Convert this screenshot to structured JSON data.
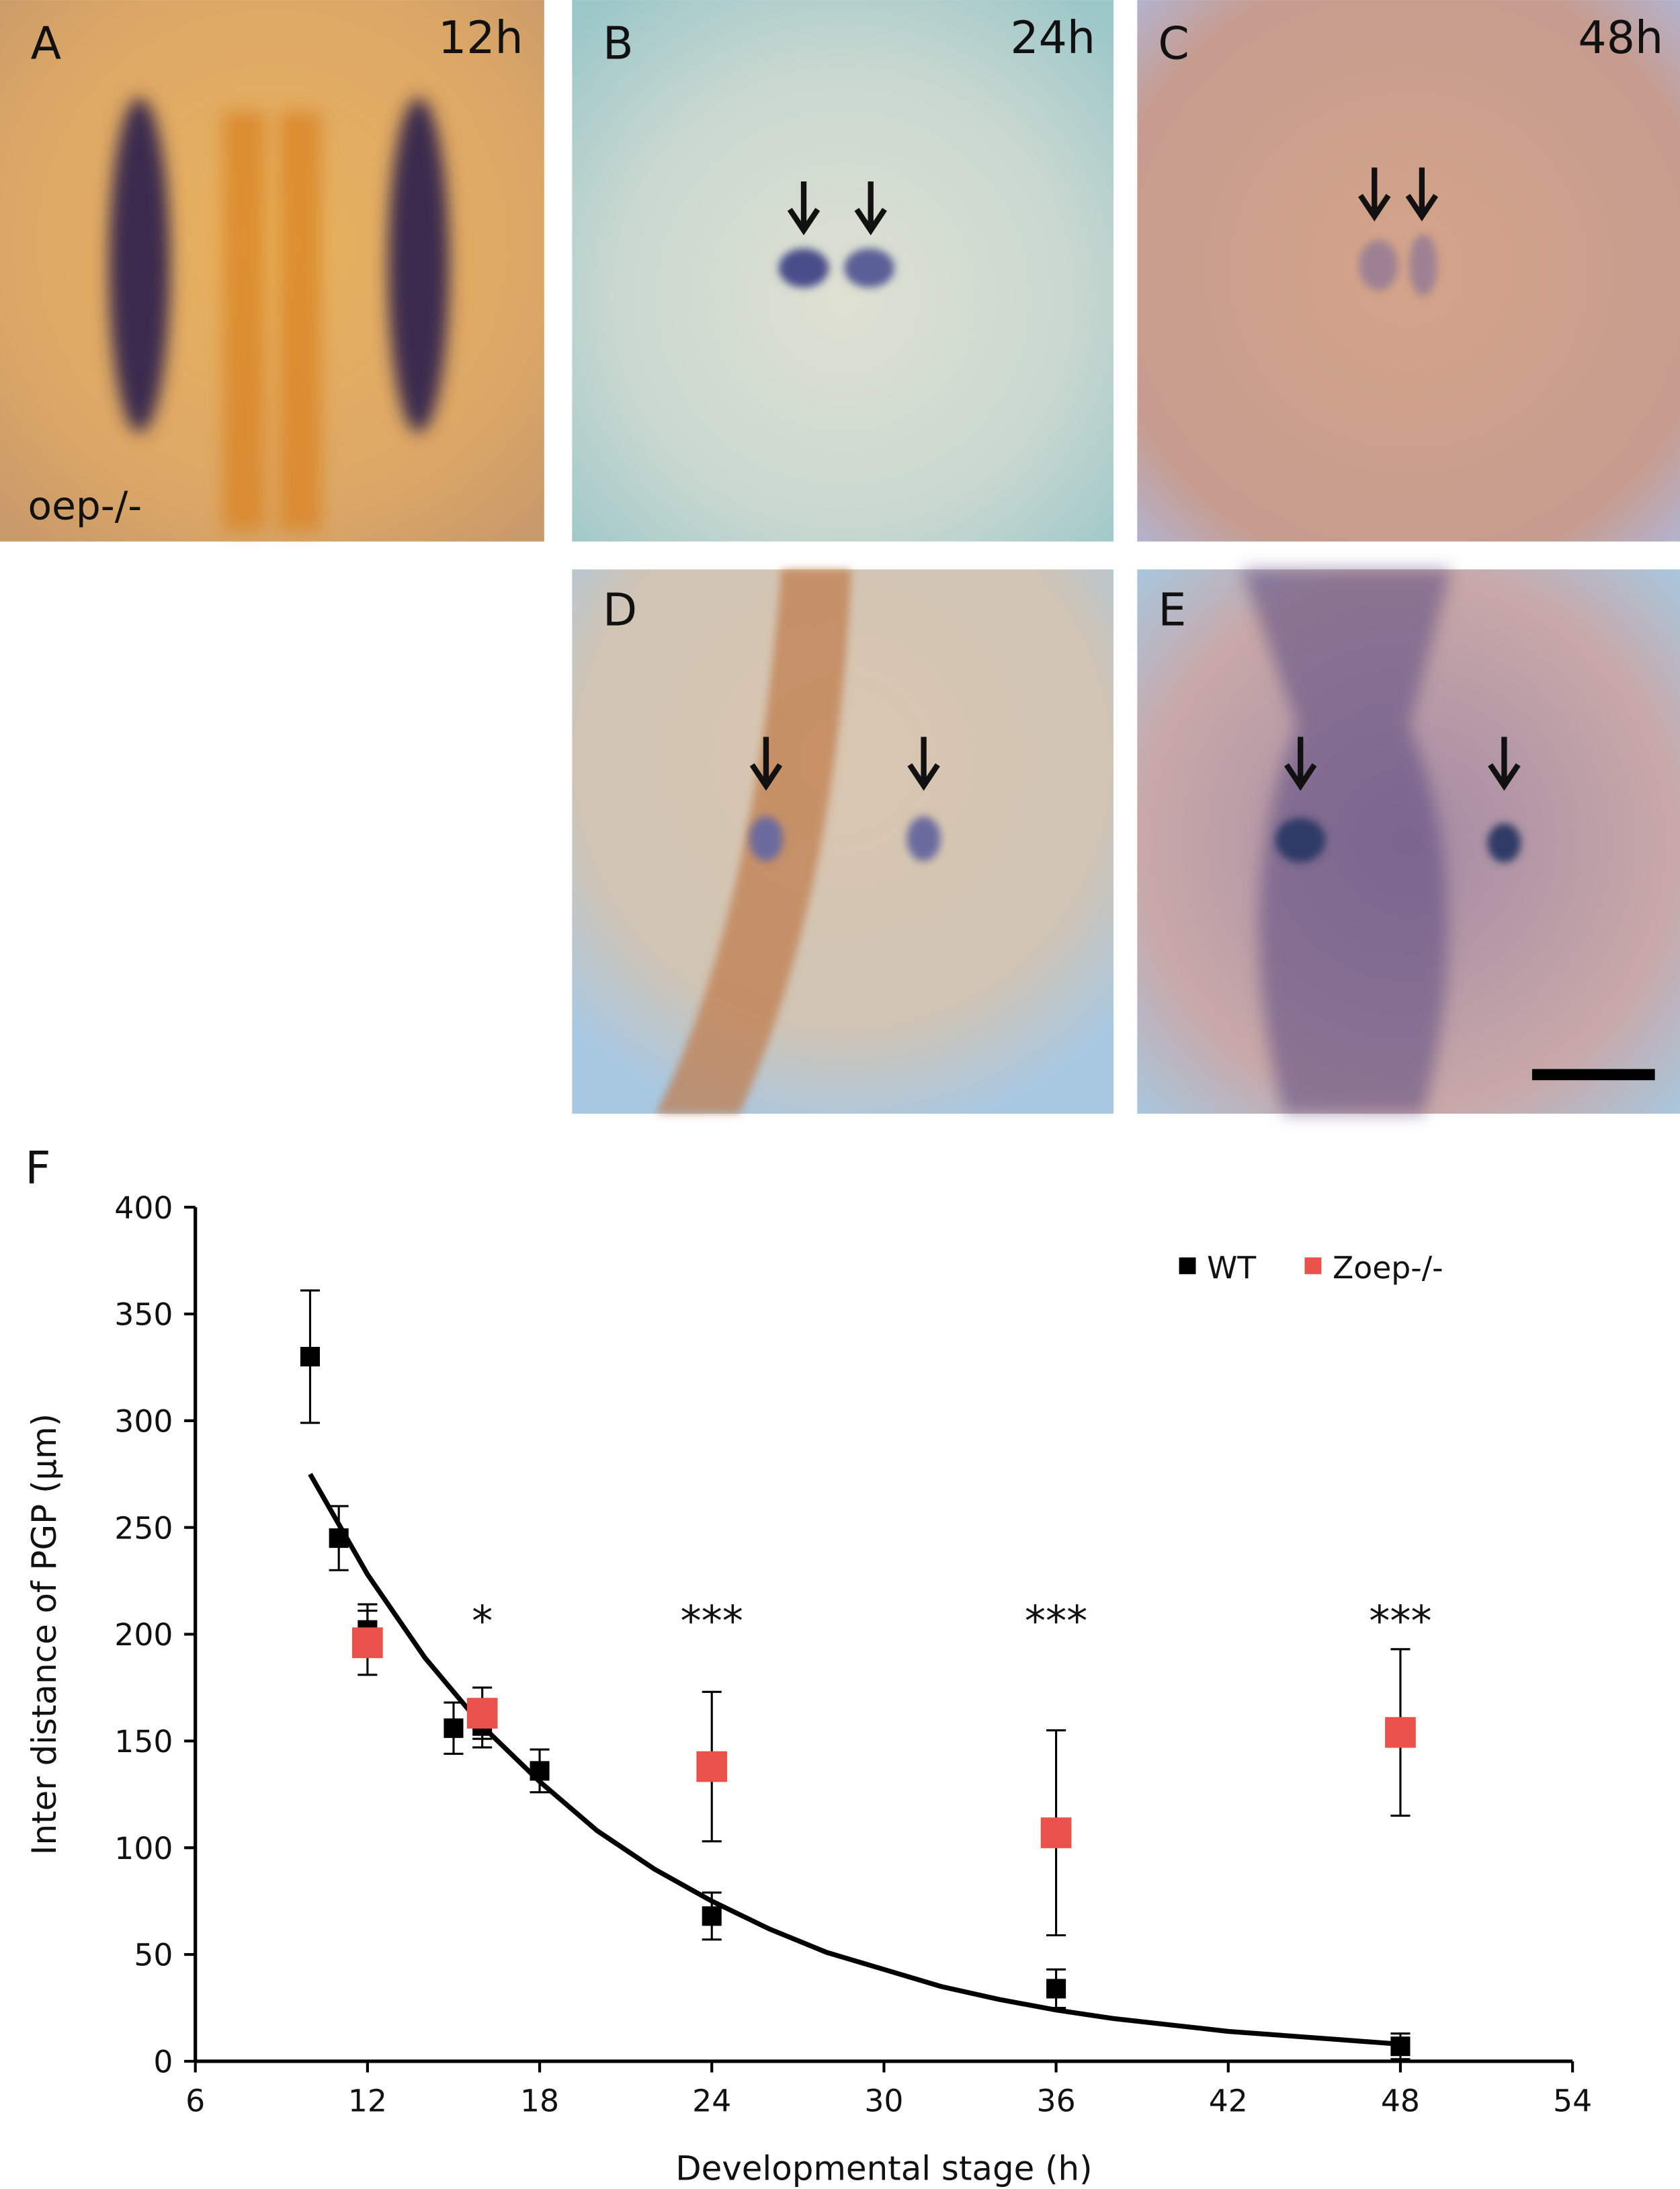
{
  "panels": [
    {
      "label": "A",
      "time": "12h",
      "note": "oep-/-"
    },
    {
      "label": "B",
      "time": "24h"
    },
    {
      "label": "C",
      "time": "48h"
    },
    {
      "label": "D"
    },
    {
      "label": "E"
    }
  ],
  "chart_data": {
    "type": "scatter",
    "panel_label": "F",
    "xlabel": "Developmental stage (h)",
    "ylabel": "Inter distance of PGP (µm)",
    "xlim": [
      6,
      54
    ],
    "xticks": [
      6,
      12,
      18,
      24,
      30,
      36,
      42,
      48,
      54
    ],
    "ylim": [
      0,
      400
    ],
    "yticks": [
      0,
      50,
      100,
      150,
      200,
      250,
      300,
      350,
      400
    ],
    "legend": "top-right",
    "series": [
      {
        "name": "WT",
        "color": "#000000",
        "x": [
          10,
          11,
          12,
          15,
          16,
          18,
          24,
          36,
          48
        ],
        "values": [
          330,
          245,
          202,
          156,
          157,
          136,
          68,
          34,
          7
        ],
        "errors": [
          31,
          15,
          12,
          12,
          10,
          10,
          11,
          9,
          6
        ]
      },
      {
        "name": "Zoep-/-",
        "color": "#e8524a",
        "x": [
          12,
          16,
          24,
          36,
          48
        ],
        "values": [
          196,
          163,
          138,
          107,
          154
        ],
        "errors": [
          15,
          12,
          35,
          48,
          39
        ]
      }
    ],
    "trendline": {
      "color": "#000000",
      "x": [
        10,
        12,
        14,
        16,
        18,
        20,
        22,
        24,
        26,
        28,
        30,
        32,
        34,
        36,
        38,
        40,
        42,
        44,
        46,
        48
      ],
      "values": [
        275,
        228,
        189,
        157,
        131,
        108,
        90,
        75,
        62,
        51,
        43,
        35,
        29,
        24,
        20,
        17,
        14,
        12,
        10,
        8
      ]
    },
    "annotations": [
      {
        "text": "*",
        "x": 16
      },
      {
        "text": "***",
        "x": 24
      },
      {
        "text": "***",
        "x": 36
      },
      {
        "text": "***",
        "x": 48
      }
    ]
  }
}
